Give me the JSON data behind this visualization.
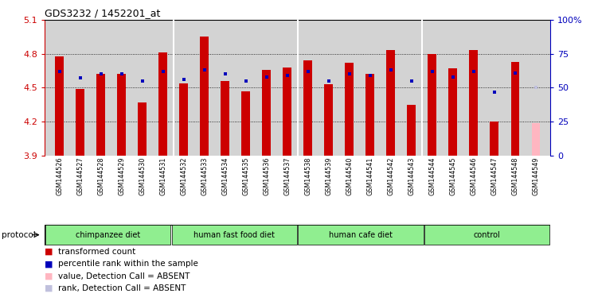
{
  "title": "GDS3232 / 1452201_at",
  "samples": [
    "GSM144526",
    "GSM144527",
    "GSM144528",
    "GSM144529",
    "GSM144530",
    "GSM144531",
    "GSM144532",
    "GSM144533",
    "GSM144534",
    "GSM144535",
    "GSM144536",
    "GSM144537",
    "GSM144538",
    "GSM144539",
    "GSM144540",
    "GSM144541",
    "GSM144542",
    "GSM144543",
    "GSM144544",
    "GSM144545",
    "GSM144546",
    "GSM144547",
    "GSM144548",
    "GSM144549"
  ],
  "bar_values": [
    4.78,
    4.49,
    4.62,
    4.62,
    4.37,
    4.81,
    4.54,
    4.95,
    4.56,
    4.47,
    4.66,
    4.68,
    4.74,
    4.53,
    4.72,
    4.62,
    4.83,
    4.35,
    4.8,
    4.67,
    4.83,
    4.2,
    4.73,
    4.19
  ],
  "rank_values": [
    62,
    57,
    60,
    60,
    55,
    62,
    56,
    63,
    60,
    55,
    58,
    59,
    62,
    55,
    60,
    59,
    63,
    55,
    62,
    58,
    62,
    47,
    61,
    50
  ],
  "absent_flags": [
    false,
    false,
    false,
    false,
    false,
    false,
    false,
    false,
    false,
    false,
    false,
    false,
    false,
    false,
    false,
    false,
    false,
    false,
    false,
    false,
    false,
    false,
    false,
    true
  ],
  "group_labels": [
    "chimpanzee diet",
    "human fast food diet",
    "human cafe diet",
    "control"
  ],
  "group_sizes": [
    6,
    6,
    6,
    6
  ],
  "ylim_left": [
    3.9,
    5.1
  ],
  "ylim_right": [
    0,
    100
  ],
  "yticks_left": [
    3.9,
    4.2,
    4.5,
    4.8,
    5.1
  ],
  "yticks_right": [
    0,
    25,
    50,
    75,
    100
  ],
  "bar_color": "#CC0000",
  "rank_color": "#0000BB",
  "absent_bar_color": "#FFB6C1",
  "absent_rank_color": "#C0C0DD",
  "plot_bg": "#D3D3D3",
  "left_axis_color": "#CC0000",
  "right_axis_color": "#0000BB",
  "bar_width": 0.4,
  "group_color": "#90EE90",
  "legend_items": [
    [
      "#CC0000",
      "transformed count"
    ],
    [
      "#0000BB",
      "percentile rank within the sample"
    ],
    [
      "#FFB6C1",
      "value, Detection Call = ABSENT"
    ],
    [
      "#C0C0DD",
      "rank, Detection Call = ABSENT"
    ]
  ]
}
